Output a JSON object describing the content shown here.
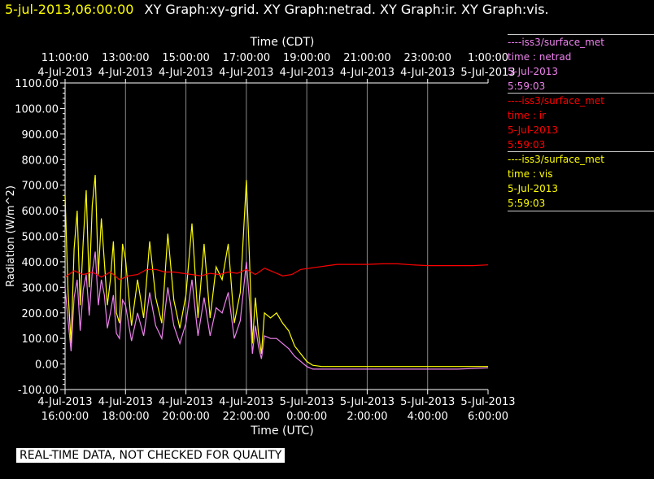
{
  "header": {
    "date": "5-jul-2013,06:00:00",
    "graphs": "XY Graph:xy-grid.  XY Graph:netrad.  XY Graph:ir.  XY Graph:vis."
  },
  "colors": {
    "netrad": "#ee82ee",
    "ir": "#ff0000",
    "vis": "#ffff00",
    "grid": "#ffffff",
    "axis": "#ffffff"
  },
  "legend": [
    {
      "key": "netrad",
      "source": "----iss3/surface_met",
      "var": "time : netrad",
      "date": "5-Jul-2013",
      "time": "5:59:03"
    },
    {
      "key": "ir",
      "source": "----iss3/surface_met",
      "var": "time : ir",
      "date": "5-Jul-2013",
      "time": "5:59:03"
    },
    {
      "key": "vis",
      "source": "----iss3/surface_met",
      "var": "time : vis",
      "date": "5-Jul-2013",
      "time": "5:59:03"
    }
  ],
  "footer": "REAL-TIME DATA, NOT CHECKED FOR QUALITY",
  "chart_data": {
    "type": "line",
    "ylabel": "Radiation (W/m^2)",
    "xlabel_bottom": "Time (UTC)",
    "xlabel_top": "Time (CDT)",
    "ylim": [
      -100,
      1100
    ],
    "xlim_hours_utc": [
      16,
      30
    ],
    "y_ticks": [
      "-100.00",
      "0.00",
      "100.00",
      "200.00",
      "300.00",
      "400.00",
      "500.00",
      "600.00",
      "700.00",
      "800.00",
      "900.00",
      "1000.00",
      "1100.00"
    ],
    "bottom_ticks": [
      {
        "date": "4-Jul-2013",
        "time": "16:00:00"
      },
      {
        "date": "4-Jul-2013",
        "time": "18:00:00"
      },
      {
        "date": "4-Jul-2013",
        "time": "20:00:00"
      },
      {
        "date": "4-Jul-2013",
        "time": "22:00:00"
      },
      {
        "date": "5-Jul-2013",
        "time": "0:00:00"
      },
      {
        "date": "5-Jul-2013",
        "time": "2:00:00"
      },
      {
        "date": "5-Jul-2013",
        "time": "4:00:00"
      },
      {
        "date": "5-Jul-2013",
        "time": "6:00:00"
      }
    ],
    "top_ticks": [
      {
        "date": "4-Jul-2013",
        "time": "11:00:00"
      },
      {
        "date": "4-Jul-2013",
        "time": "13:00:00"
      },
      {
        "date": "4-Jul-2013",
        "time": "15:00:00"
      },
      {
        "date": "4-Jul-2013",
        "time": "17:00:00"
      },
      {
        "date": "4-Jul-2013",
        "time": "19:00:00"
      },
      {
        "date": "4-Jul-2013",
        "time": "21:00:00"
      },
      {
        "date": "4-Jul-2013",
        "time": "23:00:00"
      },
      {
        "date": "5-Jul-2013",
        "time": "1:00:00"
      }
    ],
    "series": [
      {
        "key": "vis",
        "x": [
          16.0,
          16.1,
          16.2,
          16.3,
          16.4,
          16.5,
          16.6,
          16.7,
          16.8,
          16.9,
          17.0,
          17.1,
          17.2,
          17.3,
          17.4,
          17.5,
          17.6,
          17.7,
          17.8,
          17.9,
          18.0,
          18.2,
          18.4,
          18.6,
          18.8,
          19.0,
          19.2,
          19.4,
          19.6,
          19.8,
          20.0,
          20.2,
          20.4,
          20.6,
          20.8,
          21.0,
          21.2,
          21.4,
          21.6,
          21.8,
          22.0,
          22.1,
          22.2,
          22.3,
          22.4,
          22.5,
          22.6,
          22.8,
          23.0,
          23.2,
          23.4,
          23.6,
          23.8,
          24.0,
          24.2,
          24.5,
          25.0,
          26.0,
          27.0,
          28.0,
          29.0,
          30.0
        ],
        "y": [
          660,
          280,
          80,
          450,
          600,
          230,
          480,
          680,
          300,
          620,
          740,
          350,
          570,
          400,
          230,
          330,
          480,
          200,
          160,
          470,
          410,
          150,
          330,
          180,
          480,
          260,
          160,
          510,
          250,
          140,
          270,
          550,
          180,
          470,
          180,
          380,
          330,
          470,
          160,
          280,
          720,
          420,
          80,
          260,
          120,
          40,
          200,
          180,
          200,
          160,
          130,
          70,
          40,
          10,
          -5,
          -10,
          -10,
          -10,
          -10,
          -10,
          -10,
          -10
        ]
      },
      {
        "key": "netrad",
        "x": [
          16.0,
          16.1,
          16.2,
          16.3,
          16.4,
          16.5,
          16.6,
          16.7,
          16.8,
          16.9,
          17.0,
          17.1,
          17.2,
          17.3,
          17.4,
          17.5,
          17.6,
          17.7,
          17.8,
          17.9,
          18.0,
          18.2,
          18.4,
          18.6,
          18.8,
          19.0,
          19.2,
          19.4,
          19.6,
          19.8,
          20.0,
          20.2,
          20.4,
          20.6,
          20.8,
          21.0,
          21.2,
          21.4,
          21.6,
          21.8,
          22.0,
          22.1,
          22.2,
          22.3,
          22.4,
          22.5,
          22.6,
          22.8,
          23.0,
          23.2,
          23.4,
          23.6,
          23.8,
          24.0,
          24.2,
          24.5,
          25.0,
          26.0,
          27.0,
          28.0,
          29.0,
          30.0
        ],
        "y": [
          300,
          170,
          50,
          260,
          330,
          130,
          290,
          350,
          190,
          360,
          440,
          230,
          330,
          270,
          140,
          200,
          270,
          120,
          100,
          250,
          230,
          90,
          200,
          110,
          280,
          150,
          100,
          300,
          150,
          80,
          160,
          330,
          110,
          260,
          110,
          220,
          200,
          280,
          100,
          170,
          400,
          250,
          40,
          150,
          70,
          20,
          110,
          100,
          100,
          80,
          60,
          30,
          10,
          -10,
          -20,
          -20,
          -20,
          -20,
          -20,
          -20,
          -20,
          -15
        ]
      },
      {
        "key": "ir",
        "x": [
          16.0,
          16.3,
          16.6,
          16.9,
          17.2,
          17.5,
          17.8,
          18.1,
          18.4,
          18.7,
          19.0,
          19.3,
          19.6,
          19.9,
          20.2,
          20.5,
          20.8,
          21.1,
          21.4,
          21.7,
          22.0,
          22.3,
          22.6,
          22.9,
          23.2,
          23.5,
          23.8,
          24.1,
          24.4,
          24.7,
          25.0,
          25.5,
          26.0,
          26.5,
          27.0,
          27.5,
          28.0,
          28.5,
          29.0,
          29.5,
          30.0
        ],
        "y": [
          340,
          365,
          350,
          360,
          340,
          360,
          330,
          345,
          350,
          370,
          370,
          360,
          360,
          355,
          350,
          345,
          355,
          350,
          360,
          355,
          370,
          350,
          375,
          360,
          345,
          350,
          370,
          375,
          380,
          385,
          390,
          390,
          390,
          392,
          392,
          388,
          385,
          385,
          385,
          385,
          388
        ]
      }
    ]
  }
}
